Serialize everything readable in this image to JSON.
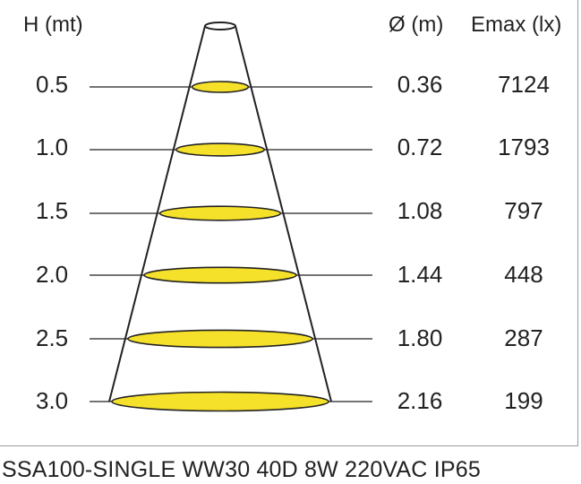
{
  "headers": {
    "height": "H (mt)",
    "diameter": "Ø (m)",
    "emax": "Emax (lx)"
  },
  "rows": [
    {
      "height": "0.5",
      "diameter": "0.36",
      "emax": "7124"
    },
    {
      "height": "1.0",
      "diameter": "0.72",
      "emax": "1793"
    },
    {
      "height": "1.5",
      "diameter": "1.08",
      "emax": "797"
    },
    {
      "height": "2.0",
      "diameter": "1.44",
      "emax": "448"
    },
    {
      "height": "2.5",
      "diameter": "1.80",
      "emax": "287"
    },
    {
      "height": "3.0",
      "diameter": "2.16",
      "emax": "199"
    }
  ],
  "caption": "SSA100-SINGLE WW30 40D 8W 220VAC IP65",
  "colors": {
    "ellipse_fill": "#f5e02a",
    "line": "#222222",
    "frame": "#9a9a9a"
  }
}
